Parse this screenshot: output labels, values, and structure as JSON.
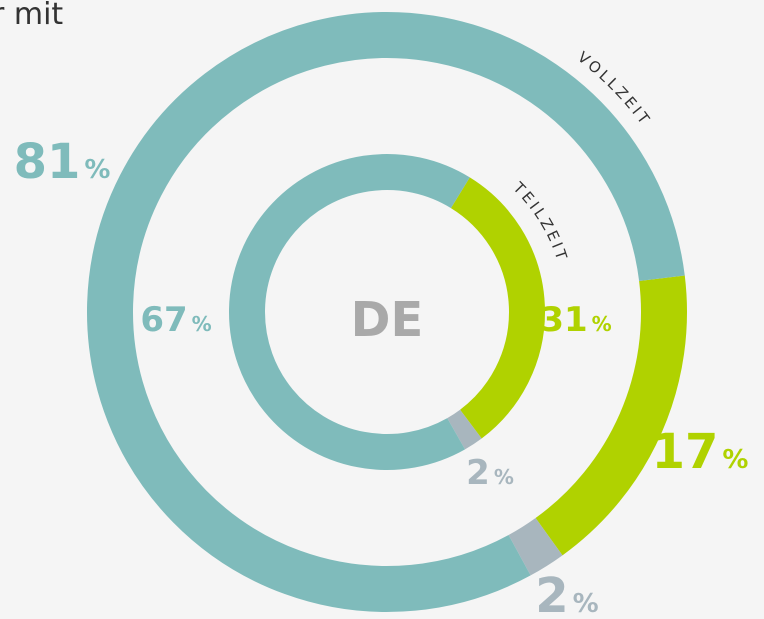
{
  "chart_data": {
    "type": "donut",
    "title": "r mit",
    "center_label": "DE",
    "unit": "%",
    "colors": [
      "#b0d200",
      "#a8b6be",
      "#7fbbbb"
    ],
    "rings": [
      {
        "name": "VOLLZEIT",
        "values": [
          17,
          2,
          81
        ]
      },
      {
        "name": "TEILZEIT",
        "values": [
          31,
          2,
          67
        ]
      }
    ]
  }
}
